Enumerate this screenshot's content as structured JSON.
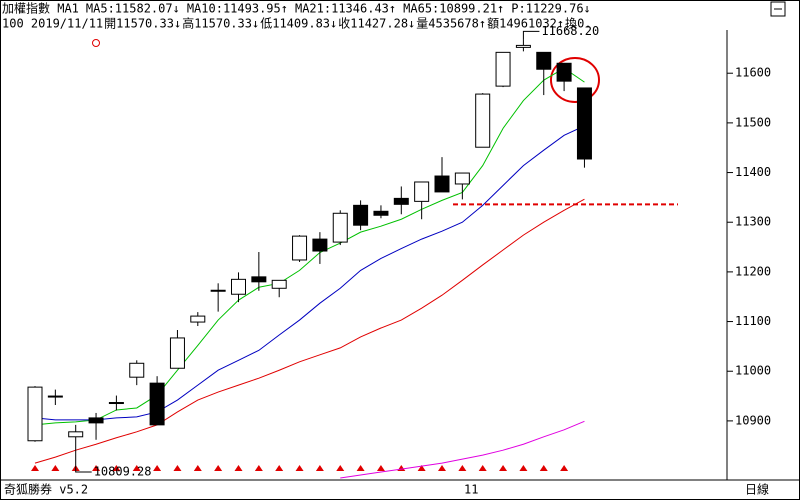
{
  "chart_data": {
    "type": "candlestick",
    "header": [
      {
        "text": "加權指數 MA1",
        "color": "#000000"
      },
      {
        "text": "MA5:11582.07↓",
        "color": "#00a000"
      },
      {
        "text": "MA10:11493.95↑",
        "color": "#0000c0"
      },
      {
        "text": "MA21:11346.43↑",
        "color": "#e00000"
      },
      {
        "text": "MA65:10899.21↑",
        "color": "#d000d0"
      },
      {
        "text": "P:11229.76↓",
        "color": "#00a000"
      }
    ],
    "info": [
      "100 2019/11/11",
      "開11570.33↓",
      "高11570.33↓",
      "低11409.83↓",
      "收11427.28↓",
      "量4535678↑",
      "額14961032↑",
      "換0."
    ],
    "ohlc": {
      "open": [
        10860,
        10950,
        10868,
        10906,
        10937,
        10988,
        10976,
        11006,
        11099,
        11163,
        11155,
        11190,
        11167,
        11224,
        11266,
        11260,
        11334,
        11322,
        11348,
        11342,
        11393,
        11377,
        11451,
        11574,
        11652,
        11642,
        11620,
        11570.33
      ],
      "high": [
        10970,
        10963,
        10892,
        10916,
        10951,
        11022,
        10990,
        11083,
        11119,
        11177,
        11199,
        11240,
        11183,
        11274,
        11280,
        11324,
        11344,
        11334,
        11372,
        11381,
        11431,
        11399,
        11560,
        11642,
        11668.2,
        11642,
        11620,
        11570.33
      ],
      "low": [
        10858,
        10932,
        10809.28,
        10862,
        10921,
        10972,
        10892,
        11006,
        11091,
        11120,
        11139,
        11162,
        11149,
        11220,
        11216,
        11254,
        11284,
        11308,
        11316,
        11306,
        11361,
        11346,
        11451,
        11572,
        11644,
        11556,
        11564,
        11409.83
      ],
      "close": [
        10968,
        10948,
        10878,
        10896,
        10935,
        11016,
        10892,
        11067,
        11111,
        11161,
        11185,
        11180,
        11183,
        11272,
        11242,
        11318,
        11294,
        11314,
        11336,
        11381,
        11361,
        11399,
        11558,
        11642,
        11656,
        11608,
        11584,
        11427.28
      ],
      "up_color": "#ffffff",
      "down_color": "#000000"
    },
    "lines": [
      {
        "color": "#00c000",
        "values": [
          10892,
          10896,
          10898,
          10902,
          10922,
          10926,
          10952,
          11002,
          11052,
          11103,
          11143,
          11169,
          11177,
          11203,
          11239,
          11258,
          11280,
          11292,
          11306,
          11326,
          11344,
          11360,
          11414,
          11489,
          11545,
          11586,
          11610,
          11582.07
        ]
      },
      {
        "color": "#0000c0",
        "values": [
          10906,
          10902,
          10902,
          10902,
          10906,
          10908,
          10918,
          10942,
          10972,
          11002,
          11022,
          11042,
          11073,
          11103,
          11137,
          11167,
          11203,
          11227,
          11247,
          11266,
          11282,
          11300,
          11334,
          11374,
          11414,
          11445,
          11475,
          11493.95
        ]
      },
      {
        "color": "#e00000",
        "values": [
          10815,
          10827,
          10841,
          10853,
          10866,
          10878,
          10892,
          10918,
          10942,
          10958,
          10972,
          10986,
          11002,
          11019,
          11033,
          11047,
          11069,
          11087,
          11103,
          11127,
          11153,
          11183,
          11214,
          11244,
          11274,
          11300,
          11324,
          11346.43
        ]
      },
      {
        "color": "#e000e0",
        "values": [
          null,
          null,
          null,
          null,
          null,
          null,
          null,
          null,
          null,
          null,
          null,
          null,
          null,
          null,
          null,
          10785,
          10791,
          10797,
          10803,
          10809,
          10815,
          10823,
          10831,
          10841,
          10853,
          10868,
          10882,
          10899.21
        ]
      }
    ],
    "annotations": [
      {
        "text": "11668.20",
        "index": 24,
        "value": 11668.2
      },
      {
        "text": "10809.28",
        "index": 2,
        "value": 10809.28
      }
    ],
    "reference_line": {
      "value": 11336,
      "color": "#e00000"
    },
    "ylim": [
      10781,
      11687
    ],
    "yticks": [
      10900,
      11000,
      11100,
      11200,
      11300,
      11400,
      11500,
      11600
    ],
    "x_marker": "11",
    "footer_left": "奇狐勝券 v5.2",
    "footer_right": "日線"
  }
}
